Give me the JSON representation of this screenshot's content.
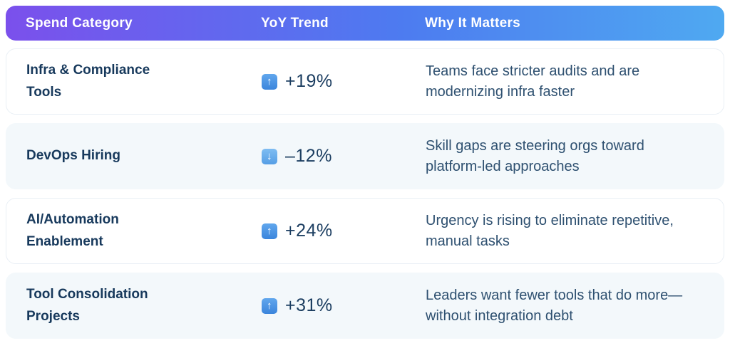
{
  "colors": {
    "header_gradient_start": "#7b50ec",
    "header_gradient_mid": "#4d7bf0",
    "header_gradient_end": "#4fa9f1",
    "row_tint": "#f3f8fb",
    "heading_text": "#17395c",
    "body_text": "#2e5070",
    "up_icon_blue": "#3f88dd",
    "down_icon_blue": "#6fb0ee"
  },
  "table": {
    "columns": [
      {
        "label": "Spend Category"
      },
      {
        "label": "YoY Trend"
      },
      {
        "label": "Why It Matters"
      }
    ],
    "icons": {
      "up": {
        "glyph": "↑"
      },
      "down": {
        "glyph": "↓"
      }
    },
    "rows": [
      {
        "category": "Infra & Compliance Tools",
        "trend_direction": "up",
        "trend_value": "+19%",
        "why": "Teams face stricter audits and are modernizing infra faster"
      },
      {
        "category": "DevOps Hiring",
        "trend_direction": "down",
        "trend_value": "–12%",
        "why": "Skill gaps are steering orgs toward platform-led approaches"
      },
      {
        "category": "AI/Automation Enablement",
        "trend_direction": "up",
        "trend_value": "+24%",
        "why": "Urgency is rising to eliminate repetitive, manual tasks"
      },
      {
        "category": "Tool Consolidation Projects",
        "trend_direction": "up",
        "trend_value": "+31%",
        "why": "Leaders want fewer tools that do more—without integration debt"
      }
    ]
  },
  "chart_data": {
    "type": "table",
    "title": "",
    "columns": [
      "Spend Category",
      "YoY Trend",
      "Why It Matters"
    ],
    "rows": [
      [
        "Infra & Compliance Tools",
        "+19%",
        "Teams face stricter audits and are modernizing infra faster"
      ],
      [
        "DevOps Hiring",
        "–12%",
        "Skill gaps are steering orgs toward platform-led approaches"
      ],
      [
        "AI/Automation Enablement",
        "+24%",
        "Urgency is rising to eliminate repetitive, manual tasks"
      ],
      [
        "Tool Consolidation Projects",
        "+31%",
        "Leaders want fewer tools that do more—without integration debt"
      ]
    ],
    "yoy_trend_values_pct": [
      19,
      -12,
      24,
      31
    ],
    "trend_directions": [
      "up",
      "down",
      "up",
      "up"
    ]
  }
}
